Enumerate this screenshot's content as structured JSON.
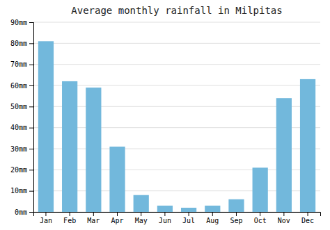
{
  "chart_data": {
    "type": "bar",
    "title": "Average monthly rainfall in Milpitas",
    "categories": [
      "Jan",
      "Feb",
      "Mar",
      "Apr",
      "May",
      "Jun",
      "Jul",
      "Aug",
      "Sep",
      "Oct",
      "Nov",
      "Dec"
    ],
    "values": [
      81,
      62,
      59,
      31,
      8,
      3,
      2,
      3,
      6,
      21,
      54,
      63
    ],
    "color": "#72b8dc",
    "ylim": [
      0,
      90
    ],
    "yticks": [
      {
        "value": 0,
        "label": "0mm"
      },
      {
        "value": 10,
        "label": "10mm"
      },
      {
        "value": 20,
        "label": "20mm"
      },
      {
        "value": 30,
        "label": "30mm"
      },
      {
        "value": 40,
        "label": "40mm"
      },
      {
        "value": 50,
        "label": "50mm"
      },
      {
        "value": 60,
        "label": "60mm"
      },
      {
        "value": 70,
        "label": "70mm"
      },
      {
        "value": 80,
        "label": "80mm"
      },
      {
        "value": 90,
        "label": "90mm"
      }
    ],
    "grid": true
  }
}
